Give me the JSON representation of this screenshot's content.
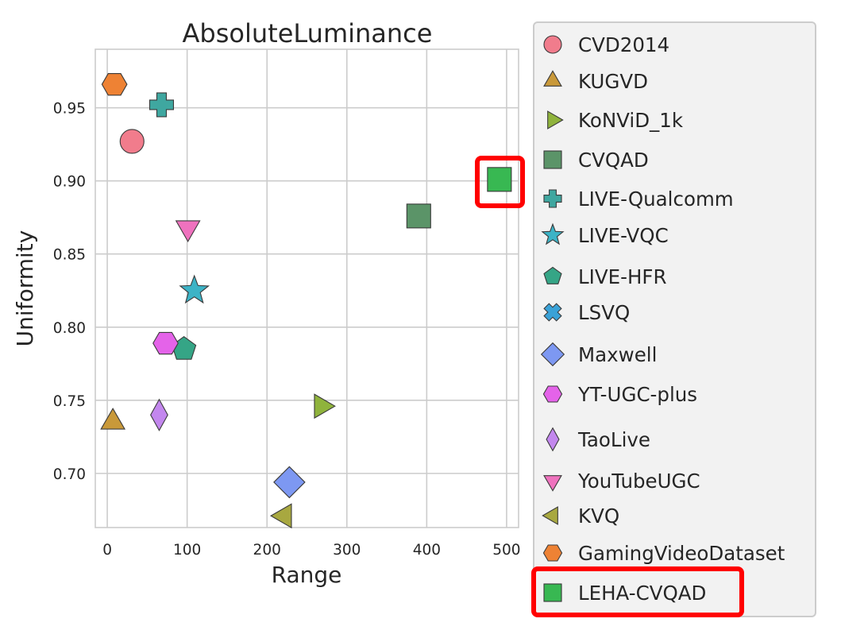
{
  "chart_data": {
    "type": "scatter",
    "title": "AbsoluteLuminance",
    "xlabel": "Range",
    "ylabel": "Uniformity",
    "xlim": [
      -15,
      515
    ],
    "ylim": [
      0.663,
      0.99
    ],
    "xticks": [
      "0",
      "100",
      "200",
      "300",
      "400",
      "500"
    ],
    "yticks": [
      "0.70",
      "0.75",
      "0.80",
      "0.85",
      "0.90",
      "0.95"
    ],
    "grid": true,
    "legend_position": "right, outside plot",
    "series": [
      {
        "name": "CVD2014",
        "marker": "circle",
        "color": "#f17c8c",
        "x": 31,
        "y": 0.927
      },
      {
        "name": "KUGVD",
        "marker": "triangle-up",
        "color": "#c9993a",
        "x": 7,
        "y": 0.735
      },
      {
        "name": "KoNViD_1k",
        "marker": "triangle-right",
        "color": "#8fb33c",
        "x": 268,
        "y": 0.746
      },
      {
        "name": "CVQAD",
        "marker": "square",
        "color": "#5b9468",
        "x": 390,
        "y": 0.876
      },
      {
        "name": "LIVE-Qualcomm",
        "marker": "plus",
        "color": "#3fa7a0",
        "x": 68,
        "y": 0.952
      },
      {
        "name": "LIVE-VQC",
        "marker": "star",
        "color": "#3cb3c6",
        "x": 109,
        "y": 0.825
      },
      {
        "name": "LIVE-HFR",
        "marker": "pentagon",
        "color": "#35a586",
        "x": 96,
        "y": 0.785
      },
      {
        "name": "LSVQ",
        "marker": "x",
        "color": "#3aa2d8",
        "x": null,
        "y": null
      },
      {
        "name": "Maxwell",
        "marker": "diamond",
        "color": "#7d98f2",
        "x": 228,
        "y": 0.694
      },
      {
        "name": "YT-UGC-plus",
        "marker": "hexagon",
        "color": "#e463e9",
        "x": 73,
        "y": 0.789
      },
      {
        "name": "TaoLive",
        "marker": "thin-diamond",
        "color": "#c387ee",
        "x": 65,
        "y": 0.74
      },
      {
        "name": "YouTubeUGC",
        "marker": "triangle-down",
        "color": "#ef72be",
        "x": 101,
        "y": 0.868
      },
      {
        "name": "KVQ",
        "marker": "triangle-left",
        "color": "#a8a840",
        "x": 222,
        "y": 0.671
      },
      {
        "name": "GamingVideoDataset",
        "marker": "hexagon",
        "color": "#ee8234",
        "x": 9,
        "y": 0.966
      },
      {
        "name": "LEHA-CVQAD",
        "marker": "square",
        "color": "#38b852",
        "x": 491,
        "y": 0.901
      }
    ],
    "annotations": [
      "red box highlighting LEHA-CVQAD point",
      "red box highlighting LEHA-CVQAD legend entry"
    ],
    "highlight_color": "#ff0000"
  },
  "legend_labels": [
    "CVD2014",
    "KUGVD",
    "KoNViD_1k",
    "CVQAD",
    "LIVE-Qualcomm",
    "LIVE-VQC",
    "LIVE-HFR",
    "LSVQ",
    "Maxwell",
    "YT-UGC-plus",
    "TaoLive",
    "YouTubeUGC",
    "KVQ",
    "GamingVideoDataset",
    "LEHA-CVQAD"
  ]
}
